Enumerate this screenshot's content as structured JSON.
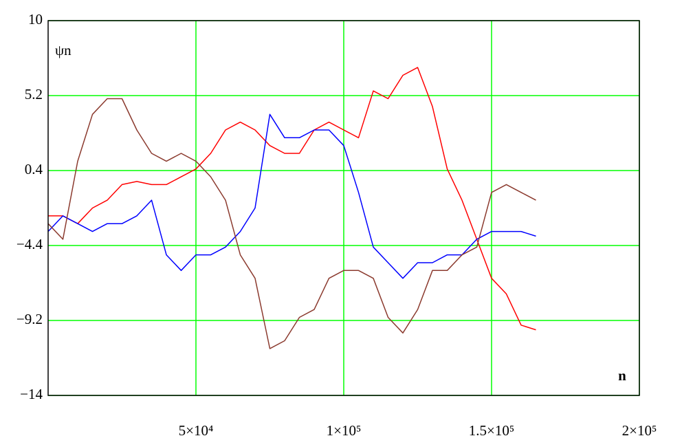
{
  "chart_data": {
    "type": "line",
    "xlabel": "n",
    "ylabel": "ψn",
    "x": [
      0,
      5000,
      10000,
      15000,
      20000,
      25000,
      30000,
      35000,
      40000,
      45000,
      50000,
      55000,
      60000,
      65000,
      70000,
      75000,
      80000,
      85000,
      90000,
      95000,
      100000,
      105000,
      110000,
      115000,
      120000,
      125000,
      130000,
      135000,
      140000,
      145000,
      150000,
      155000,
      160000,
      165000
    ],
    "series": [
      {
        "color": "#ff0000",
        "values": [
          -2.5,
          -2.5,
          -3,
          -2,
          -1.5,
          -0.5,
          -0.3,
          -0.5,
          -0.5,
          0,
          0.5,
          1.5,
          3,
          3.5,
          3,
          2,
          1.5,
          1.5,
          3,
          3.5,
          3,
          2.5,
          5.5,
          5,
          6.5,
          7,
          4.5,
          0.5,
          -1.5,
          -4,
          -6.5,
          -7.5,
          -9.5,
          -9.8
        ]
      },
      {
        "color": "#0000ff",
        "values": [
          -3.5,
          -2.5,
          -3,
          -3.5,
          -3,
          -3,
          -2.5,
          -1.5,
          -5,
          -6,
          -5,
          -5,
          -4.5,
          -3.5,
          -2,
          4,
          2.5,
          2.5,
          3,
          3,
          2,
          -1,
          -4.5,
          -5.5,
          -6.5,
          -5.5,
          -5.5,
          -5,
          -5,
          -4,
          -3.5,
          -3.5,
          -3.5,
          -3.8
        ]
      },
      {
        "color": "#8b3a2e",
        "values": [
          -3,
          -4,
          1,
          4,
          5,
          5,
          3,
          1.5,
          1,
          1.5,
          1,
          0,
          -1.5,
          -5,
          -6.5,
          -11,
          -10.5,
          -9,
          -8.5,
          -6.5,
          -6,
          -6,
          -6.5,
          -9,
          -10,
          -8.5,
          -6,
          -6,
          -5,
          -4.5,
          -1,
          -0.5,
          -1,
          -1.5
        ]
      }
    ],
    "xlim": [
      0,
      200000
    ],
    "xticks": [
      {
        "value": 50000,
        "label": "5×10⁴"
      },
      {
        "value": 100000,
        "label": "1×10⁵"
      },
      {
        "value": 150000,
        "label": "1.5×10⁵"
      },
      {
        "value": 200000,
        "label": "2×10⁵"
      }
    ],
    "ylim": [
      -14,
      10
    ],
    "yticks": [
      {
        "value": -14,
        "label": "−14"
      },
      {
        "value": -9.2,
        "label": "−9.2"
      },
      {
        "value": -4.4,
        "label": "−4.4"
      },
      0.4,
      5.2,
      10
    ],
    "grid": true,
    "grid_color": "#00ff00"
  }
}
